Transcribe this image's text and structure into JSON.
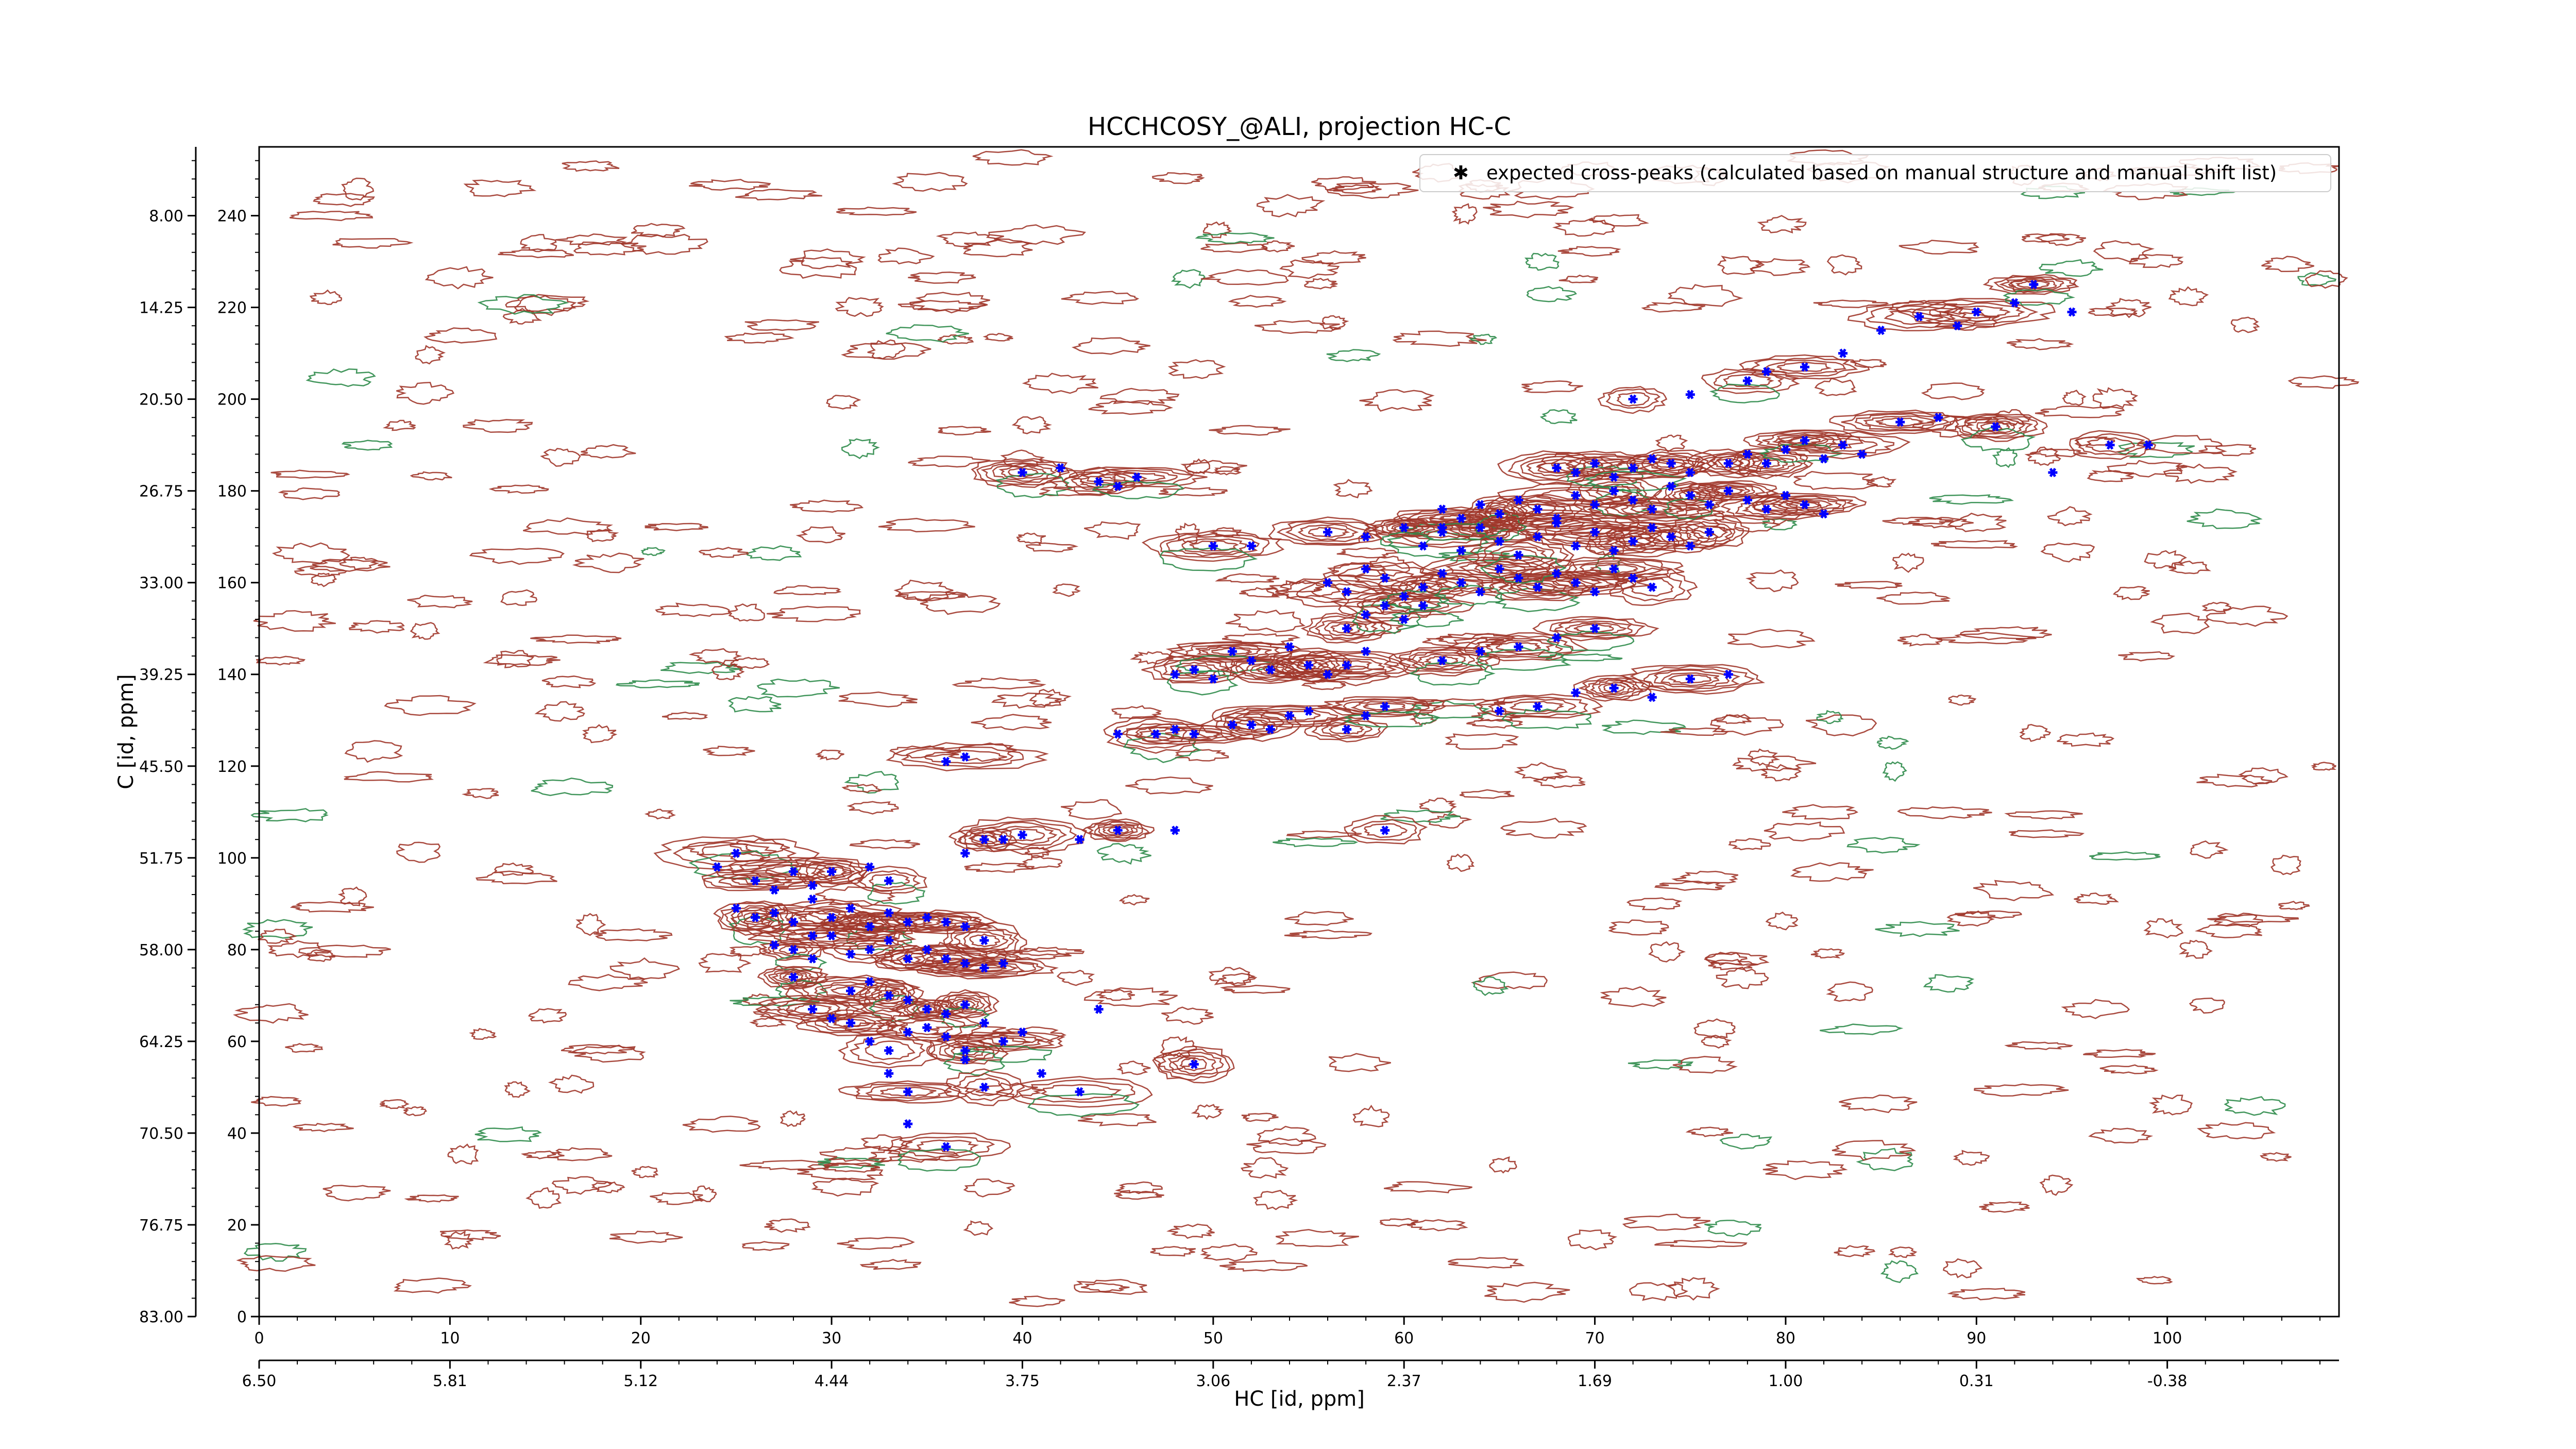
{
  "chart_data": {
    "type": "scatter",
    "title": "HCCHCOSY_@ALI, projection HC-C",
    "xlabel": "HC [id, ppm]",
    "ylabel": "C [id, ppm]",
    "x_index_range": [
      0,
      109
    ],
    "y_index_range": [
      0,
      255
    ],
    "x_index_ticks": [
      "0",
      "10",
      "20",
      "30",
      "40",
      "50",
      "60",
      "70",
      "80",
      "90",
      "100"
    ],
    "x_ppm_ticks": [
      "6.50",
      "5.81",
      "5.12",
      "4.44",
      "3.75",
      "3.06",
      "2.37",
      "1.69",
      "1.00",
      "0.31",
      "-0.38"
    ],
    "y_index_ticks": [
      "0",
      "20",
      "40",
      "60",
      "80",
      "100",
      "120",
      "140",
      "160",
      "180",
      "200",
      "220",
      "240"
    ],
    "y_ppm_ticks": [
      "83.00",
      "76.75",
      "70.50",
      "64.25",
      "58.00",
      "51.75",
      "45.50",
      "39.25",
      "33.00",
      "26.75",
      "20.50",
      "14.25",
      "8.00"
    ],
    "legend": {
      "position": "top-right",
      "label": "expected cross-peaks (calculated based on manual structure and manual shift list)",
      "marker_color": "#0000ff"
    },
    "contour_colors": {
      "positive": "#a0362a",
      "negative": "#2e8b4a"
    },
    "grid": false,
    "series": [
      {
        "name": "expected cross-peaks (calculated based on manual structure and manual shift list)",
        "color": "#0000ff",
        "points": [
          [
            25,
            101
          ],
          [
            24,
            98
          ],
          [
            26,
            95
          ],
          [
            27,
            93
          ],
          [
            28,
            97
          ],
          [
            29,
            94
          ],
          [
            30,
            97
          ],
          [
            32,
            98
          ],
          [
            33,
            95
          ],
          [
            25,
            89
          ],
          [
            26,
            87
          ],
          [
            27,
            88
          ],
          [
            28,
            86
          ],
          [
            29,
            91
          ],
          [
            30,
            87
          ],
          [
            31,
            89
          ],
          [
            32,
            85
          ],
          [
            33,
            88
          ],
          [
            34,
            86
          ],
          [
            35,
            87
          ],
          [
            36,
            86
          ],
          [
            37,
            85
          ],
          [
            38,
            82
          ],
          [
            27,
            81
          ],
          [
            28,
            80
          ],
          [
            29,
            83
          ],
          [
            30,
            83
          ],
          [
            31,
            79
          ],
          [
            32,
            80
          ],
          [
            33,
            82
          ],
          [
            34,
            78
          ],
          [
            35,
            80
          ],
          [
            36,
            78
          ],
          [
            37,
            77
          ],
          [
            38,
            76
          ],
          [
            39,
            77
          ],
          [
            28,
            74
          ],
          [
            29,
            78
          ],
          [
            31,
            71
          ],
          [
            32,
            73
          ],
          [
            33,
            70
          ],
          [
            34,
            69
          ],
          [
            35,
            67
          ],
          [
            36,
            66
          ],
          [
            37,
            68
          ],
          [
            38,
            64
          ],
          [
            39,
            60
          ],
          [
            40,
            62
          ],
          [
            29,
            67
          ],
          [
            30,
            65
          ],
          [
            31,
            64
          ],
          [
            32,
            60
          ],
          [
            33,
            58
          ],
          [
            34,
            62
          ],
          [
            35,
            63
          ],
          [
            36,
            61
          ],
          [
            37,
            58
          ],
          [
            33,
            53
          ],
          [
            34,
            49
          ],
          [
            34,
            42
          ],
          [
            36,
            37
          ],
          [
            37,
            56
          ],
          [
            38,
            50
          ],
          [
            41,
            53
          ],
          [
            43,
            49
          ],
          [
            44,
            67
          ],
          [
            49,
            55
          ],
          [
            37,
            101
          ],
          [
            38,
            104
          ],
          [
            39,
            104
          ],
          [
            40,
            105
          ],
          [
            43,
            104
          ],
          [
            45,
            106
          ],
          [
            48,
            106
          ],
          [
            59,
            106
          ],
          [
            36,
            121
          ],
          [
            37,
            122
          ],
          [
            45,
            127
          ],
          [
            47,
            127
          ],
          [
            48,
            128
          ],
          [
            49,
            127
          ],
          [
            51,
            129
          ],
          [
            52,
            129
          ],
          [
            53,
            128
          ],
          [
            54,
            131
          ],
          [
            55,
            132
          ],
          [
            57,
            128
          ],
          [
            58,
            131
          ],
          [
            59,
            133
          ],
          [
            48,
            140
          ],
          [
            49,
            141
          ],
          [
            50,
            139
          ],
          [
            51,
            145
          ],
          [
            52,
            143
          ],
          [
            53,
            141
          ],
          [
            54,
            146
          ],
          [
            55,
            142
          ],
          [
            56,
            140
          ],
          [
            57,
            142
          ],
          [
            58,
            145
          ],
          [
            57,
            150
          ],
          [
            58,
            153
          ],
          [
            59,
            155
          ],
          [
            60,
            152
          ],
          [
            61,
            155
          ],
          [
            56,
            160
          ],
          [
            57,
            158
          ],
          [
            58,
            163
          ],
          [
            59,
            161
          ],
          [
            60,
            157
          ],
          [
            61,
            159
          ],
          [
            62,
            162
          ],
          [
            63,
            160
          ],
          [
            64,
            158
          ],
          [
            65,
            163
          ],
          [
            66,
            161
          ],
          [
            67,
            159
          ],
          [
            68,
            162
          ],
          [
            69,
            160
          ],
          [
            70,
            158
          ],
          [
            71,
            163
          ],
          [
            72,
            161
          ],
          [
            73,
            159
          ],
          [
            61,
            168
          ],
          [
            62,
            171
          ],
          [
            63,
            167
          ],
          [
            64,
            172
          ],
          [
            65,
            169
          ],
          [
            66,
            166
          ],
          [
            67,
            170
          ],
          [
            68,
            173
          ],
          [
            69,
            168
          ],
          [
            70,
            171
          ],
          [
            71,
            167
          ],
          [
            72,
            169
          ],
          [
            73,
            172
          ],
          [
            74,
            170
          ],
          [
            75,
            168
          ],
          [
            76,
            171
          ],
          [
            62,
            176
          ],
          [
            63,
            174
          ],
          [
            64,
            177
          ],
          [
            65,
            175
          ],
          [
            66,
            178
          ],
          [
            67,
            176
          ],
          [
            68,
            174
          ],
          [
            69,
            179
          ],
          [
            70,
            177
          ],
          [
            71,
            180
          ],
          [
            72,
            178
          ],
          [
            73,
            176
          ],
          [
            74,
            181
          ],
          [
            75,
            179
          ],
          [
            76,
            177
          ],
          [
            77,
            180
          ],
          [
            78,
            178
          ],
          [
            79,
            176
          ],
          [
            80,
            179
          ],
          [
            81,
            177
          ],
          [
            82,
            175
          ],
          [
            68,
            185
          ],
          [
            69,
            184
          ],
          [
            70,
            186
          ],
          [
            71,
            183
          ],
          [
            72,
            185
          ],
          [
            73,
            187
          ],
          [
            74,
            186
          ],
          [
            75,
            184
          ],
          [
            77,
            186
          ],
          [
            78,
            188
          ],
          [
            79,
            186
          ],
          [
            80,
            189
          ],
          [
            81,
            191
          ],
          [
            82,
            187
          ],
          [
            83,
            190
          ],
          [
            84,
            188
          ],
          [
            72,
            200
          ],
          [
            75,
            201
          ],
          [
            78,
            204
          ],
          [
            79,
            206
          ],
          [
            81,
            207
          ],
          [
            83,
            210
          ],
          [
            86,
            195
          ],
          [
            88,
            196
          ],
          [
            91,
            194
          ],
          [
            94,
            184
          ],
          [
            97,
            190
          ],
          [
            99,
            190
          ],
          [
            50,
            168
          ],
          [
            52,
            168
          ],
          [
            56,
            171
          ],
          [
            58,
            170
          ],
          [
            60,
            172
          ],
          [
            62,
            172
          ],
          [
            40,
            184
          ],
          [
            42,
            185
          ],
          [
            44,
            182
          ],
          [
            45,
            181
          ],
          [
            46,
            183
          ],
          [
            65,
            132
          ],
          [
            67,
            133
          ],
          [
            69,
            136
          ],
          [
            71,
            137
          ],
          [
            73,
            135
          ],
          [
            75,
            139
          ],
          [
            77,
            140
          ],
          [
            62,
            143
          ],
          [
            64,
            145
          ],
          [
            66,
            146
          ],
          [
            68,
            148
          ],
          [
            70,
            150
          ],
          [
            85,
            215
          ],
          [
            87,
            218
          ],
          [
            89,
            216
          ],
          [
            90,
            219
          ],
          [
            92,
            221
          ],
          [
            93,
            225
          ],
          [
            95,
            219
          ]
        ]
      }
    ]
  }
}
